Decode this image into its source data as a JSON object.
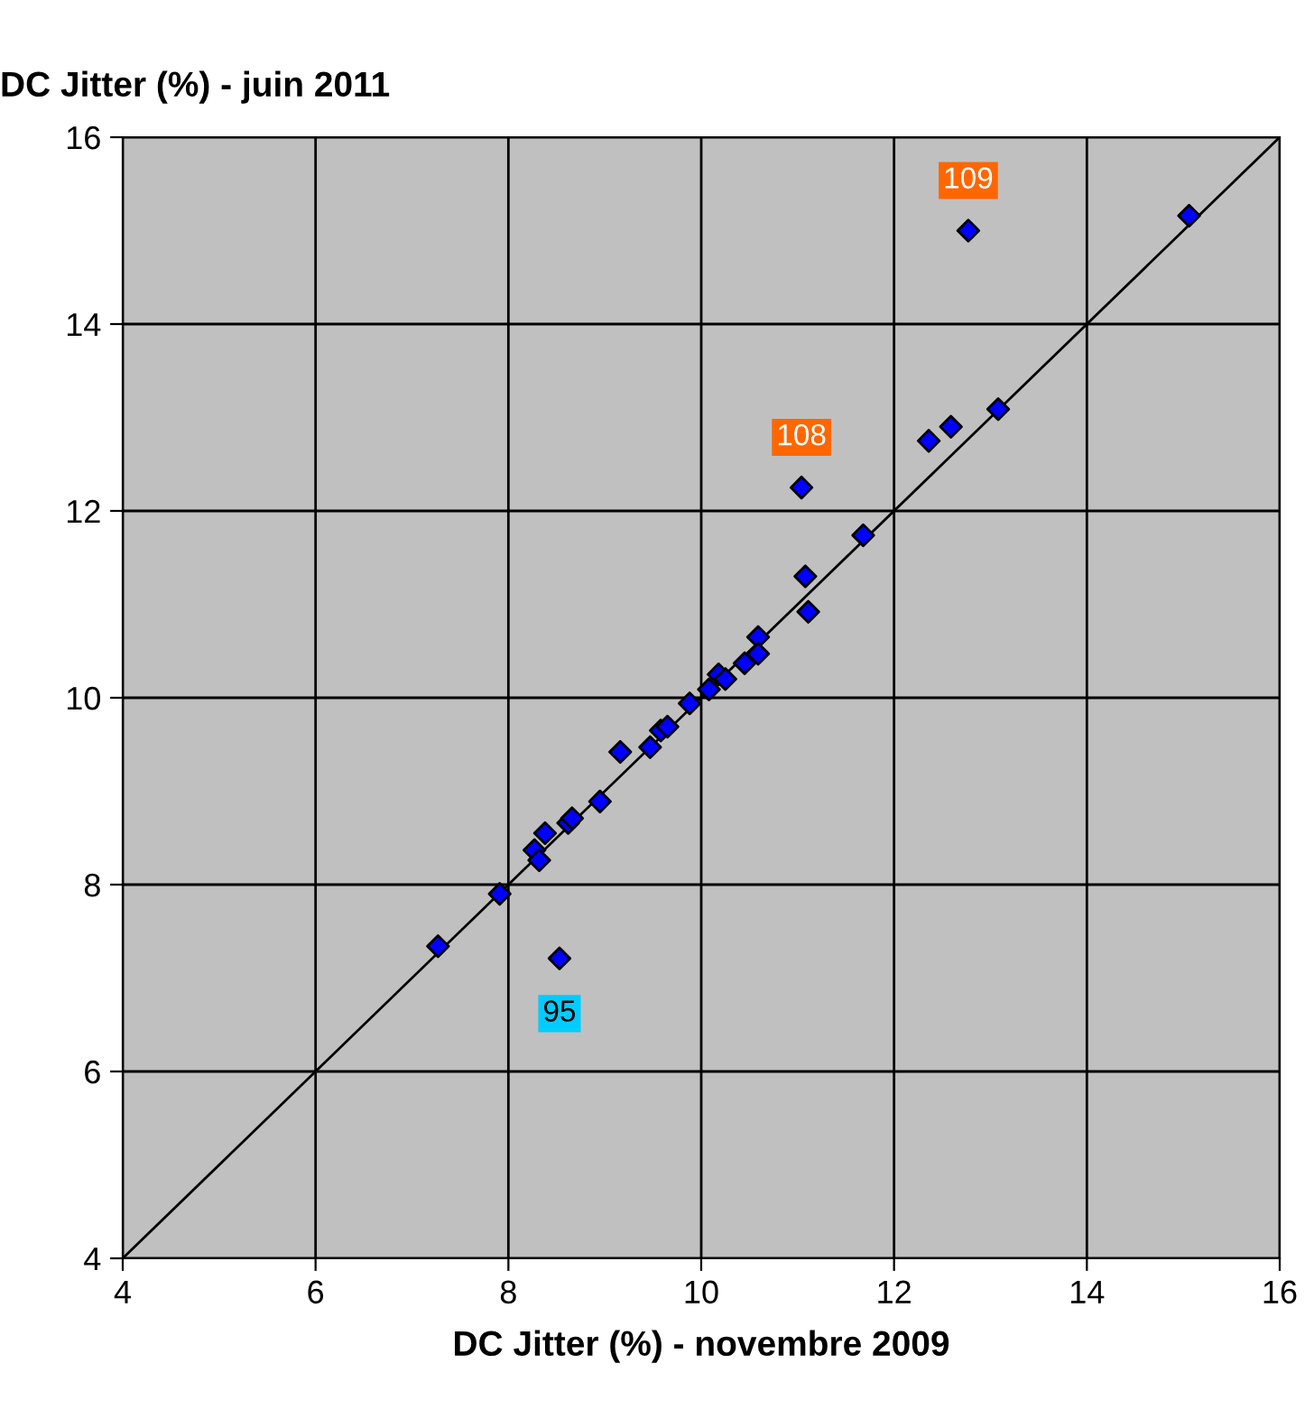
{
  "chart_data": {
    "type": "scatter",
    "xlabel": "DC Jitter (%) - novembre 2009",
    "ylabel": "DC Jitter (%) - juin 2011",
    "xlim": [
      4,
      16
    ],
    "ylim": [
      4,
      16
    ],
    "xticks": [
      4,
      6,
      8,
      10,
      12,
      14,
      16
    ],
    "yticks": [
      4,
      6,
      8,
      10,
      12,
      14,
      16
    ],
    "grid": true,
    "marker": "diamond",
    "series": [
      {
        "color": "#0000ff",
        "x": [
          7.27,
          7.91,
          8.27,
          8.32,
          8.38,
          8.62,
          8.66,
          8.95,
          9.16,
          9.47,
          9.58,
          9.65,
          9.88,
          10.08,
          10.18,
          10.25,
          10.45,
          10.59,
          10.59,
          11.08,
          11.11,
          11.04,
          11.68,
          8.53,
          12.77,
          15.06,
          12.36,
          12.59,
          13.08
        ],
        "values": [
          7.34,
          7.9,
          8.37,
          8.26,
          8.55,
          8.66,
          8.71,
          8.89,
          9.42,
          9.47,
          9.65,
          9.69,
          9.94,
          10.09,
          10.25,
          10.2,
          10.37,
          10.65,
          10.47,
          11.3,
          10.92,
          12.25,
          11.74,
          7.21,
          15.0,
          15.16,
          12.75,
          12.9,
          13.09
        ]
      },
      {
        "type": "line",
        "color": "#000000",
        "marker": "none",
        "x": [
          4,
          16
        ],
        "values": [
          4,
          16
        ]
      }
    ],
    "annotations": [
      {
        "text": "95",
        "x": 8.53,
        "y": 7.21
      },
      {
        "text": "108",
        "x": 11.04,
        "y": 12.25
      },
      {
        "text": "109",
        "x": 12.77,
        "y": 15.0
      }
    ]
  }
}
